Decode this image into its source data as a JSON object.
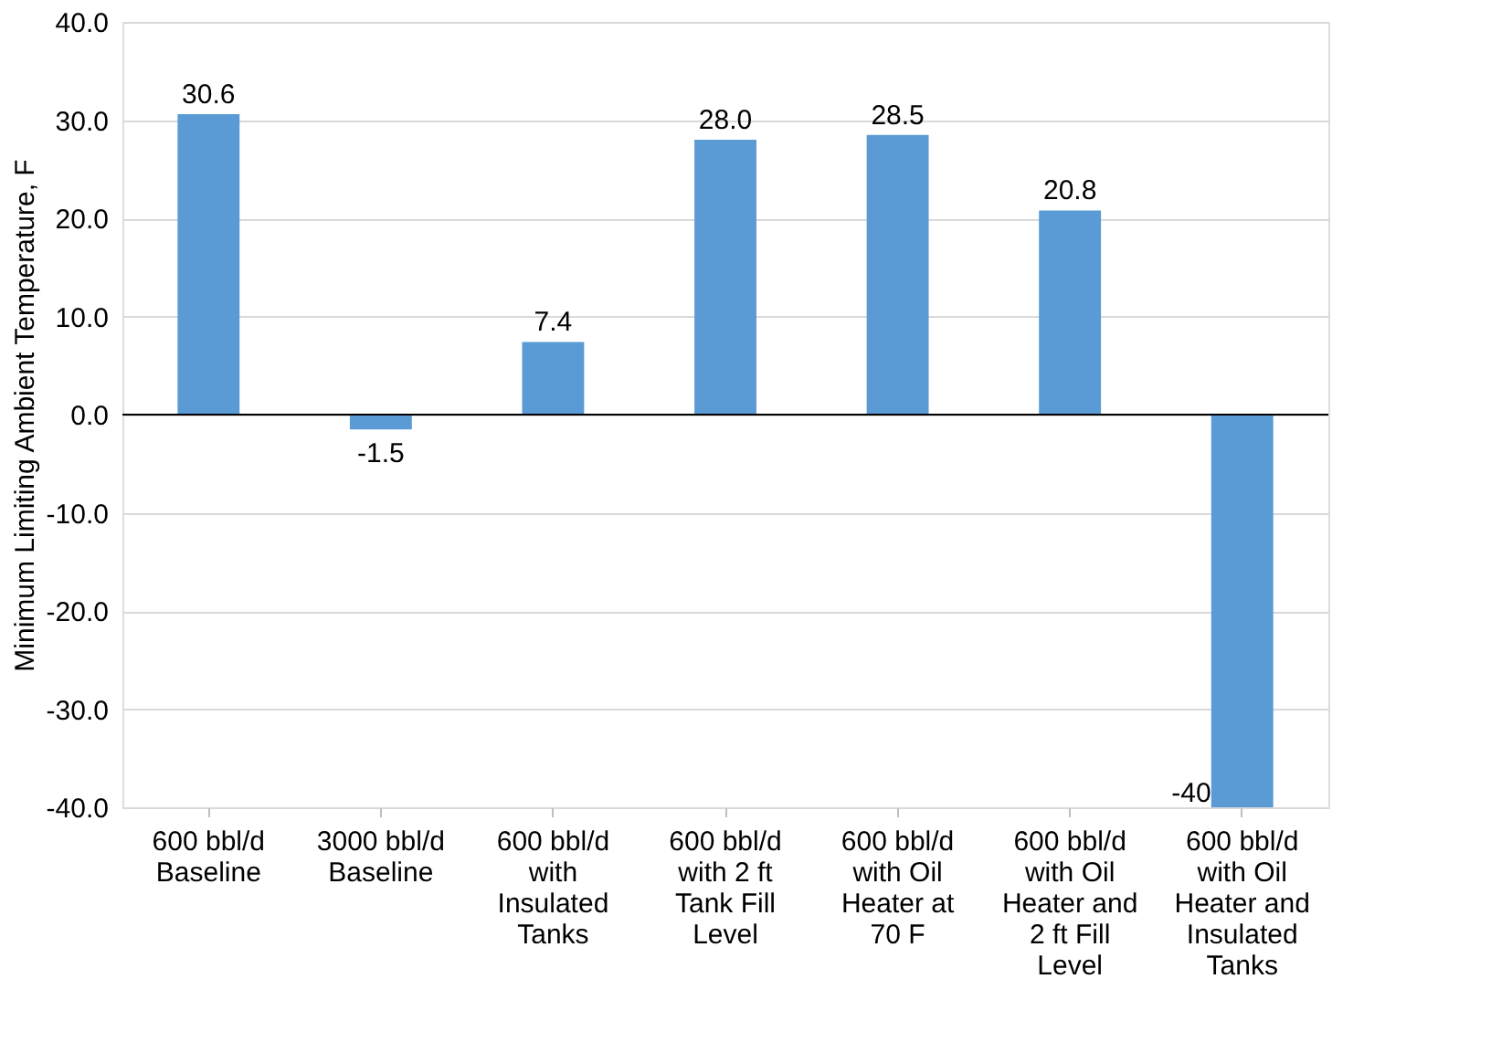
{
  "chart_data": {
    "type": "bar",
    "ylabel": "Minimum Limiting Ambient Temperature, F",
    "categories": [
      "600 bbl/d Baseline",
      "3000 bbl/d Baseline",
      "600 bbl/d with Insulated Tanks",
      "600 bbl/d with 2 ft Tank Fill Level",
      "600 bbl/d with Oil Heater at 70 F",
      "600 bbl/d with Oil Heater and 2 ft Fill Level",
      "600 bbl/d with Oil Heater and Insulated Tanks"
    ],
    "values": [
      30.6,
      -1.5,
      7.4,
      28.0,
      28.5,
      20.8,
      -40
    ],
    "value_labels": [
      "30.6",
      "-1.5",
      "7.4",
      "28.0",
      "28.5",
      "20.8",
      "-40"
    ],
    "color": "#5b9bd5",
    "ylim": [
      -40,
      40
    ],
    "yticks": [
      {
        "value": -40,
        "label": "-40.0"
      },
      {
        "value": -30,
        "label": "-30.0"
      },
      {
        "value": -20,
        "label": "-20.0"
      },
      {
        "value": -10,
        "label": "-10.0"
      },
      {
        "value": 0,
        "label": "0.0"
      },
      {
        "value": 10,
        "label": "10.0"
      },
      {
        "value": 20,
        "label": "20.0"
      },
      {
        "value": 30,
        "label": "30.0"
      },
      {
        "value": 40,
        "label": "40.0"
      }
    ],
    "grid": "y"
  }
}
